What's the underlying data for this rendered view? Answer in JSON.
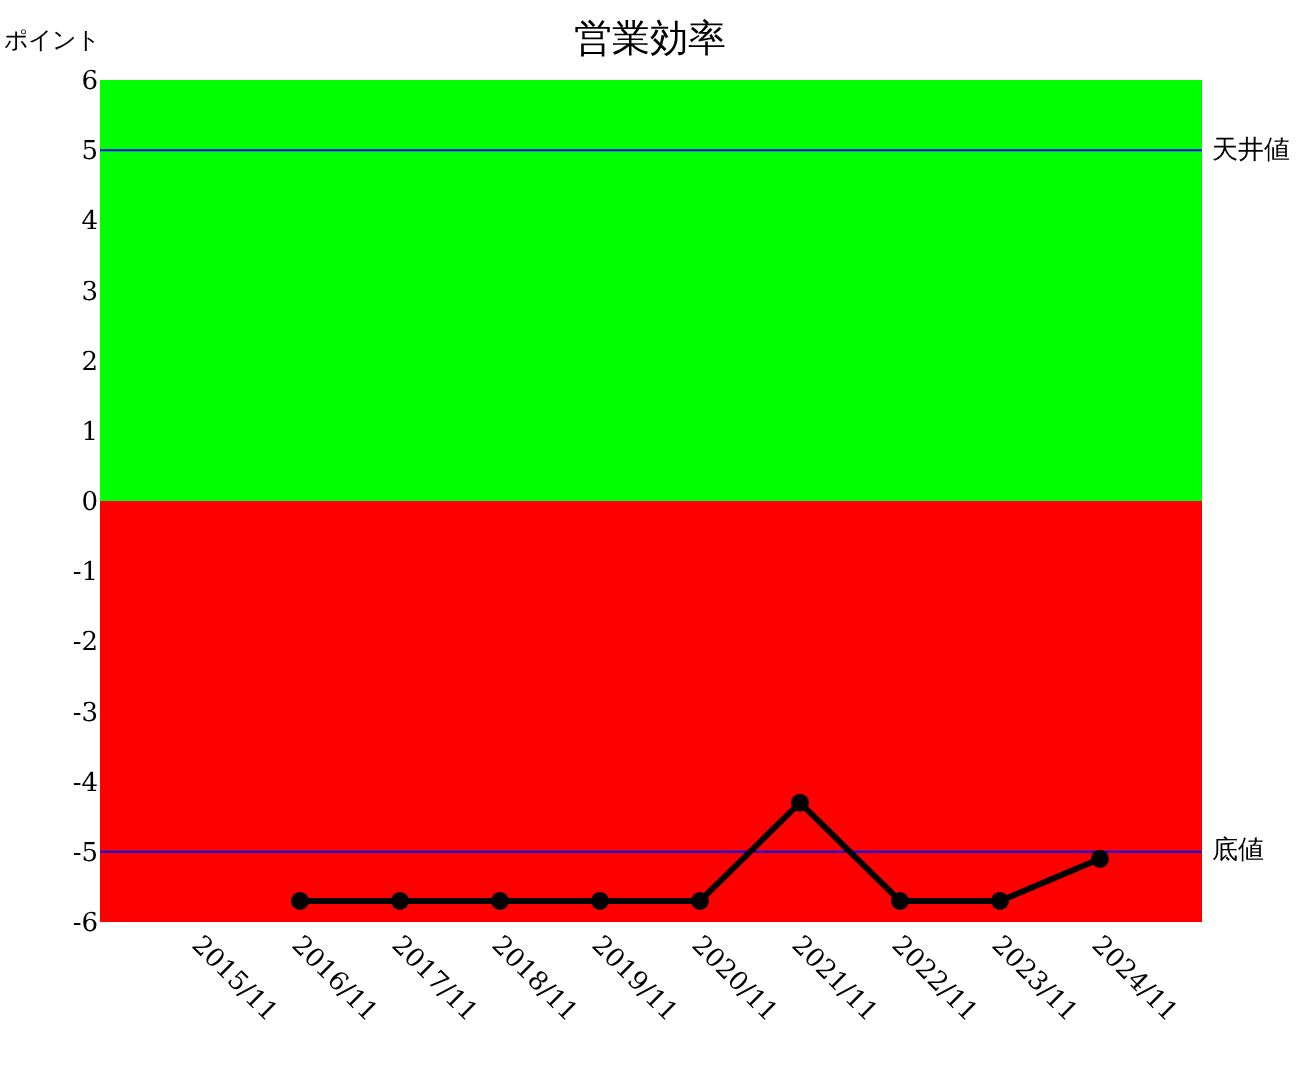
{
  "chart_data": {
    "type": "line",
    "title": "営業効率",
    "ylabel": "ポイント",
    "categories": [
      "2015/11",
      "2016/11",
      "2017/11",
      "2018/11",
      "2019/11",
      "2020/11",
      "2021/11",
      "2022/11",
      "2023/11",
      "2024/11"
    ],
    "series": [
      {
        "color": "#000000",
        "values": [
          null,
          -5.7,
          -5.7,
          -5.7,
          -5.7,
          -5.7,
          -4.3,
          -5.7,
          -5.7,
          -5.1
        ]
      }
    ],
    "ylim": [
      -6,
      6
    ],
    "yticks": [
      -6,
      -5,
      -4,
      -3,
      -2,
      -1,
      0,
      1,
      2,
      3,
      4,
      5,
      6
    ],
    "bands": [
      {
        "axis": "y",
        "from": 0,
        "to": 6,
        "color": "#00ff00"
      },
      {
        "axis": "y",
        "from": -6,
        "to": 0,
        "color": "#ff0000"
      }
    ],
    "ref_lines": [
      {
        "axis": "y",
        "value": 5,
        "label": "天井値",
        "color": "#0000ff"
      },
      {
        "axis": "y",
        "value": -5,
        "label": "底値",
        "color": "#0000ff"
      }
    ],
    "marker": "circle",
    "line_style": "solid"
  }
}
